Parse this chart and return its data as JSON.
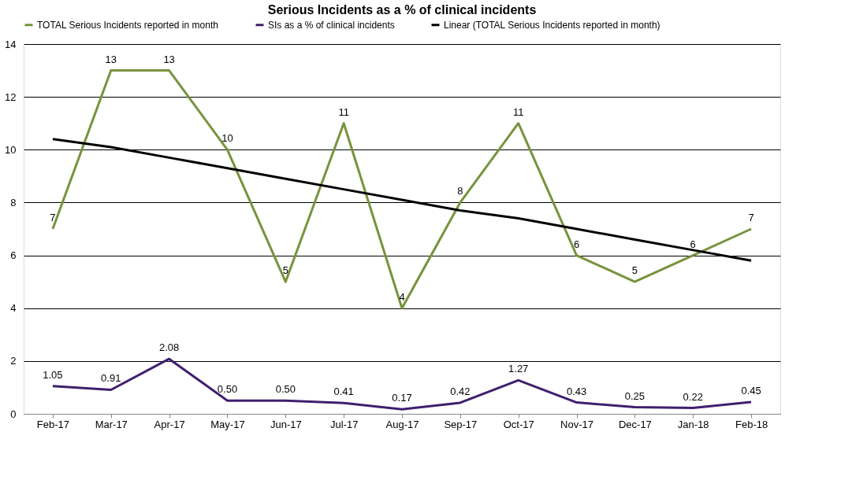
{
  "chart_data": {
    "type": "line",
    "title": "Serious Incidents as a % of clinical incidents",
    "categories": [
      "Feb-17",
      "Mar-17",
      "Apr-17",
      "May-17",
      "Jun-17",
      "Jul-17",
      "Aug-17",
      "Sep-17",
      "Oct-17",
      "Nov-17",
      "Dec-17",
      "Jan-18",
      "Feb-18"
    ],
    "series": [
      {
        "name": "TOTAL Serious Incidents reported in month",
        "color": "#77933c",
        "values": [
          7,
          13,
          13,
          10,
          5,
          11,
          4,
          8,
          11,
          6,
          5,
          6,
          7
        ],
        "value_labels": [
          "7",
          "13",
          "13",
          "10",
          "5",
          "11",
          "4",
          "8",
          "11",
          "6",
          "5",
          "6",
          "7"
        ]
      },
      {
        "name": "SIs as a % of clinical incidents",
        "color": "#3f1f6e",
        "values": [
          1.05,
          0.91,
          2.08,
          0.5,
          0.5,
          0.41,
          0.17,
          0.42,
          1.27,
          0.43,
          0.25,
          0.22,
          0.45
        ],
        "value_labels": [
          "1.05",
          "0.91",
          "2.08",
          "0.50",
          "0.50",
          "0.41",
          "0.17",
          "0.42",
          "1.27",
          "0.43",
          "0.25",
          "0.22",
          "0.45"
        ]
      },
      {
        "name": "Linear (TOTAL Serious Incidents reported in month)",
        "color": "#000000",
        "values": [
          10.4,
          10.1,
          9.7,
          9.3,
          8.9,
          8.5,
          8.1,
          7.7,
          7.4,
          7.0,
          6.6,
          6.2,
          5.8
        ]
      }
    ],
    "ylim": [
      0,
      14
    ],
    "yticks": [
      0,
      2,
      4,
      6,
      8,
      10,
      12,
      14
    ],
    "grid": "y",
    "legend": "top",
    "marker": "none",
    "line_style": "solid"
  }
}
